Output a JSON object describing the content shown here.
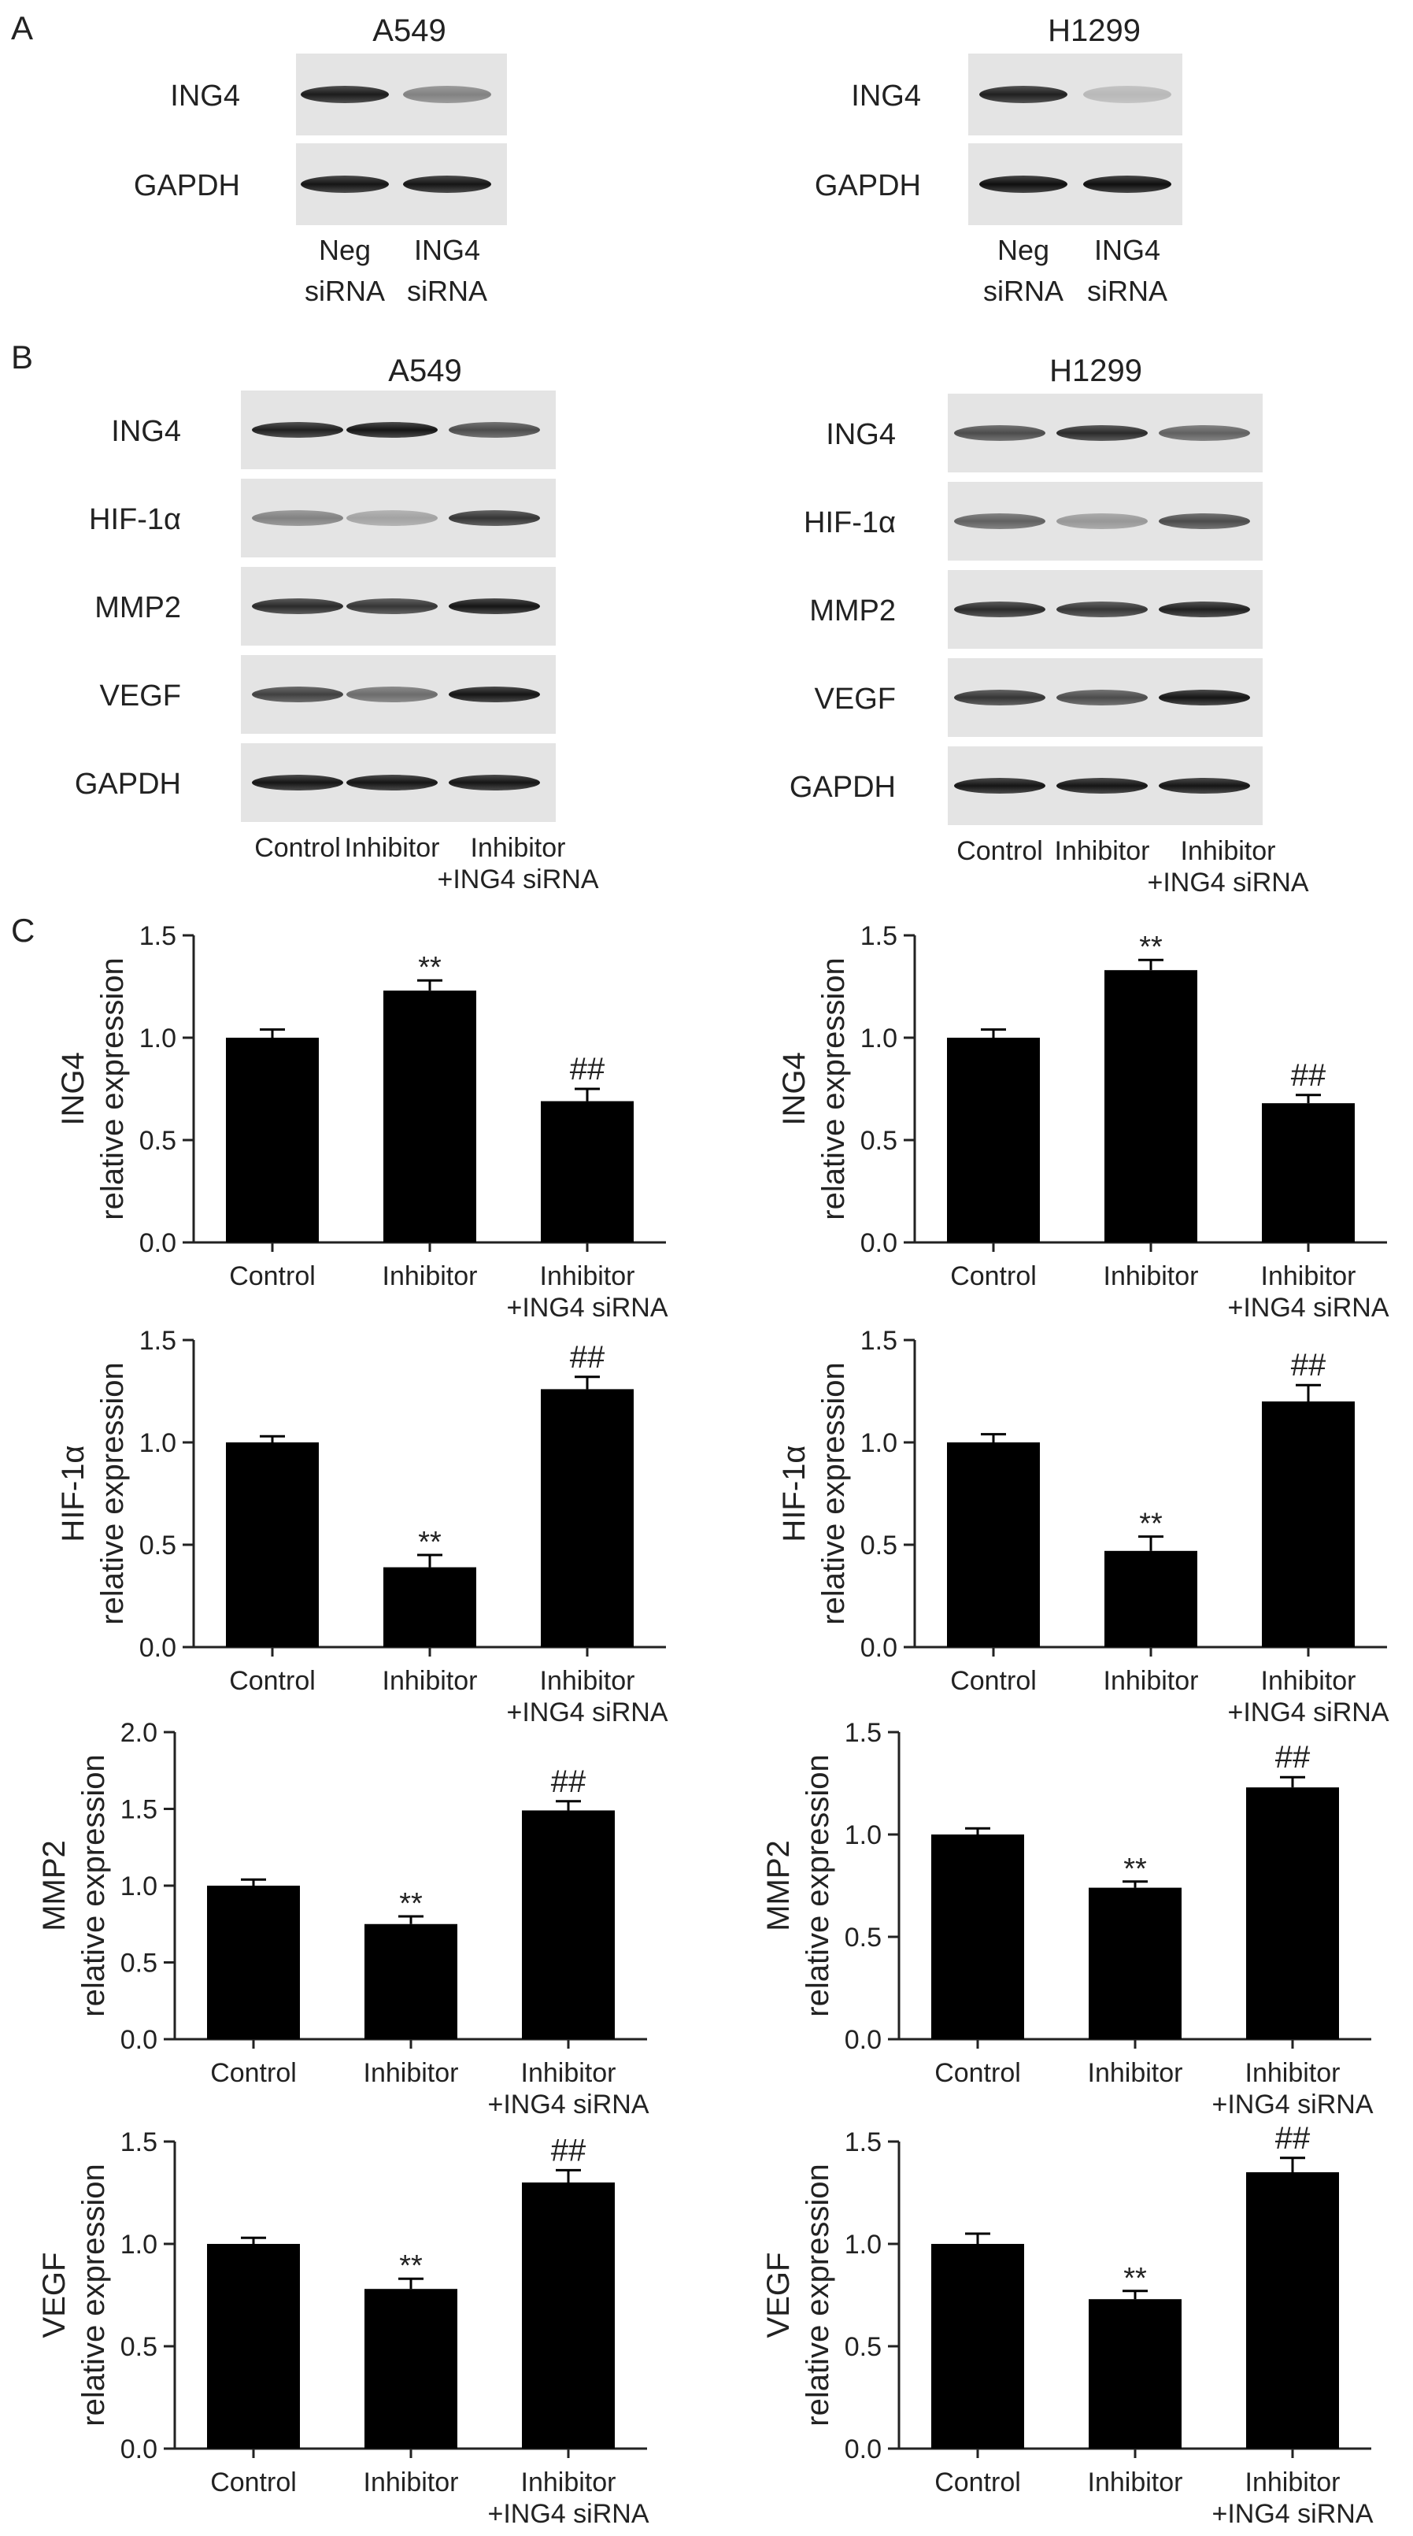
{
  "panel_labels": {
    "a": "A",
    "b": "B",
    "c": "C"
  },
  "panel_a": {
    "blots": [
      {
        "title": "A549",
        "rows": [
          "ING4",
          "GAPDH"
        ],
        "lanes": [
          [
            "Neg",
            "siRNA"
          ],
          [
            "ING4",
            "siRNA"
          ]
        ]
      },
      {
        "title": "H1299",
        "rows": [
          "ING4",
          "GAPDH"
        ],
        "lanes": [
          [
            "Neg",
            "siRNA"
          ],
          [
            "ING4",
            "siRNA"
          ]
        ]
      }
    ]
  },
  "panel_b": {
    "blots": [
      {
        "title": "A549",
        "rows": [
          "ING4",
          "HIF-1α",
          "MMP2",
          "VEGF",
          "GAPDH"
        ],
        "lanes": [
          [
            "Control"
          ],
          [
            "Inhibitor"
          ],
          [
            "Inhibitor",
            "+ING4 siRNA"
          ]
        ]
      },
      {
        "title": "H1299",
        "rows": [
          "ING4",
          "HIF-1α",
          "MMP2",
          "VEGF",
          "GAPDH"
        ],
        "lanes": [
          [
            "Control"
          ],
          [
            "Inhibitor"
          ],
          [
            "Inhibitor",
            "+ING4 siRNA"
          ]
        ]
      }
    ]
  },
  "chart_data": [
    {
      "type": "bar",
      "categories": [
        "Control",
        "Inhibitor",
        "Inhibitor\n+ING4 siRNA"
      ],
      "values": [
        1.0,
        1.23,
        0.69
      ],
      "errors": [
        0.04,
        0.05,
        0.06
      ],
      "annotations": [
        "",
        "**",
        "##"
      ],
      "ylabel": [
        "ING4",
        "relative expression"
      ],
      "ylim": [
        0,
        1.5
      ],
      "yticks": [
        0.0,
        0.5,
        1.0,
        1.5
      ]
    },
    {
      "type": "bar",
      "categories": [
        "Control",
        "Inhibitor",
        "Inhibitor\n+ING4 siRNA"
      ],
      "values": [
        1.0,
        1.33,
        0.68
      ],
      "errors": [
        0.04,
        0.05,
        0.04
      ],
      "annotations": [
        "",
        "**",
        "##"
      ],
      "ylabel": [
        "ING4",
        "relative expression"
      ],
      "ylim": [
        0,
        1.5
      ],
      "yticks": [
        0.0,
        0.5,
        1.0,
        1.5
      ]
    },
    {
      "type": "bar",
      "categories": [
        "Control",
        "Inhibitor",
        "Inhibitor\n+ING4 siRNA"
      ],
      "values": [
        1.0,
        0.39,
        1.26
      ],
      "errors": [
        0.03,
        0.06,
        0.06
      ],
      "annotations": [
        "",
        "**",
        "##"
      ],
      "ylabel": [
        "HIF-1α",
        "relative expression"
      ],
      "ylim": [
        0,
        1.5
      ],
      "yticks": [
        0.0,
        0.5,
        1.0,
        1.5
      ]
    },
    {
      "type": "bar",
      "categories": [
        "Control",
        "Inhibitor",
        "Inhibitor\n+ING4 siRNA"
      ],
      "values": [
        1.0,
        0.47,
        1.2
      ],
      "errors": [
        0.04,
        0.07,
        0.08
      ],
      "annotations": [
        "",
        "**",
        "##"
      ],
      "ylabel": [
        "HIF-1α",
        "relative expression"
      ],
      "ylim": [
        0,
        1.5
      ],
      "yticks": [
        0.0,
        0.5,
        1.0,
        1.5
      ]
    },
    {
      "type": "bar",
      "categories": [
        "Control",
        "Inhibitor",
        "Inhibitor\n+ING4 siRNA"
      ],
      "values": [
        1.0,
        0.75,
        1.49
      ],
      "errors": [
        0.04,
        0.05,
        0.06
      ],
      "annotations": [
        "",
        "**",
        "##"
      ],
      "ylabel": [
        "MMP2",
        "relative expression"
      ],
      "ylim": [
        0,
        2.0
      ],
      "yticks": [
        0.0,
        0.5,
        1.0,
        1.5,
        2.0
      ]
    },
    {
      "type": "bar",
      "categories": [
        "Control",
        "Inhibitor",
        "Inhibitor\n+ING4 siRNA"
      ],
      "values": [
        1.0,
        0.74,
        1.23
      ],
      "errors": [
        0.03,
        0.03,
        0.05
      ],
      "annotations": [
        "",
        "**",
        "##"
      ],
      "ylabel": [
        "MMP2",
        "relative expression"
      ],
      "ylim": [
        0,
        1.5
      ],
      "yticks": [
        0.0,
        0.5,
        1.0,
        1.5
      ]
    },
    {
      "type": "bar",
      "categories": [
        "Control",
        "Inhibitor",
        "Inhibitor\n+ING4 siRNA"
      ],
      "values": [
        1.0,
        0.78,
        1.3
      ],
      "errors": [
        0.03,
        0.05,
        0.06
      ],
      "annotations": [
        "",
        "**",
        "##"
      ],
      "ylabel": [
        "VEGF",
        "relative expression"
      ],
      "ylim": [
        0,
        1.5
      ],
      "yticks": [
        0.0,
        0.5,
        1.0,
        1.5
      ]
    },
    {
      "type": "bar",
      "categories": [
        "Control",
        "Inhibitor",
        "Inhibitor\n+ING4 siRNA"
      ],
      "values": [
        1.0,
        0.73,
        1.35
      ],
      "errors": [
        0.05,
        0.04,
        0.07
      ],
      "annotations": [
        "",
        "**",
        "##"
      ],
      "ylabel": [
        "VEGF",
        "relative expression"
      ],
      "ylim": [
        0,
        1.5
      ],
      "yticks": [
        0.0,
        0.5,
        1.0,
        1.5
      ]
    }
  ]
}
